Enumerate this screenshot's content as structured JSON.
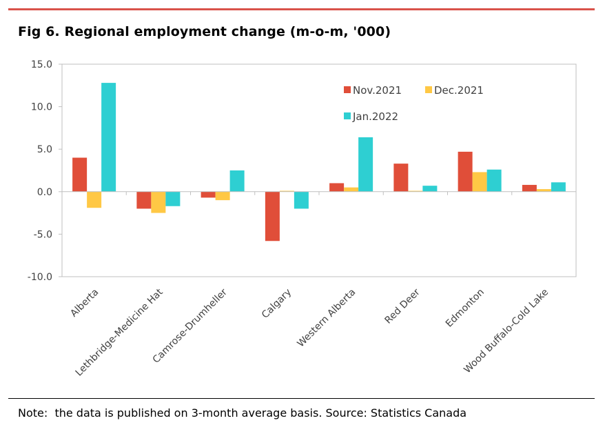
{
  "page": {
    "title": "Fig 6. Regional employment change (m-o-m, '000)",
    "note": "Note:  the data is published on 3-month average basis. Source: Statistics Canada",
    "rule_color": "#d9534a"
  },
  "chart_data": {
    "type": "bar",
    "title": "Fig 6. Regional employment change (m-o-m, '000)",
    "xlabel": "",
    "ylabel": "",
    "ylim": [
      -10,
      15
    ],
    "yticks": [
      15,
      10,
      5,
      0,
      -5,
      -10
    ],
    "ytick_labels": [
      "15.0",
      "10.0",
      "5.0",
      "0.0",
      "-5.0",
      "-10.0"
    ],
    "grid": false,
    "legend_position": "top-right",
    "categories": [
      "Alberta",
      "Lethbridge-Medicine Hat",
      "Camrose-Drumheller",
      "Calgary",
      "Western Alberta",
      "Red Deer",
      "Edmonton",
      "Wood Buffalo-Cold Lake"
    ],
    "series": [
      {
        "name": "Nov.2021",
        "color": "#e04e39",
        "values": [
          4.0,
          -2.0,
          -0.7,
          -5.8,
          1.0,
          3.3,
          4.7,
          0.8
        ]
      },
      {
        "name": "Dec.2021",
        "color": "#ffc845",
        "values": [
          -1.9,
          -2.5,
          -1.0,
          0.1,
          0.5,
          0.1,
          2.3,
          0.3
        ]
      },
      {
        "name": "Jan.2022",
        "color": "#2ecfd2",
        "values": [
          12.8,
          -1.7,
          2.5,
          -2.0,
          6.4,
          0.7,
          2.6,
          1.1
        ]
      }
    ]
  }
}
